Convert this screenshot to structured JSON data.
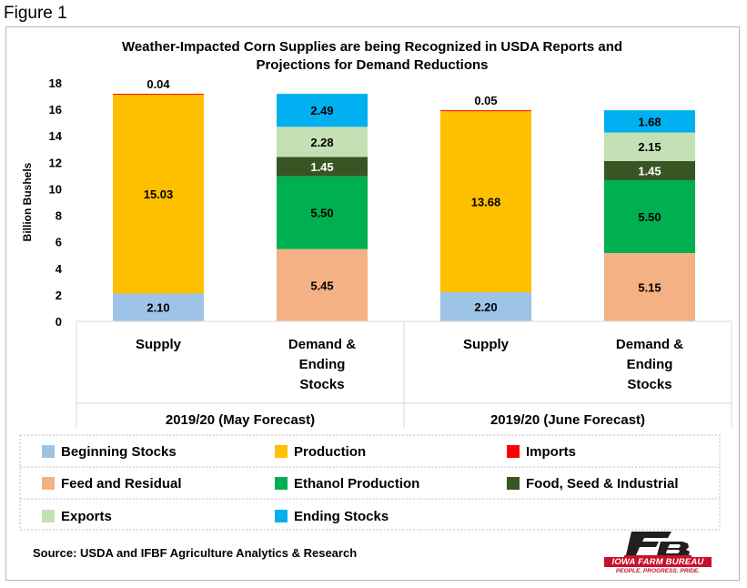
{
  "figure_label": "Figure 1",
  "source": "Source: USDA and IFBF Agriculture Analytics & Research",
  "logo": {
    "name": "IOWA FARM BUREAU",
    "tagline": "PEOPLE. PROGRESS. PRIDE.",
    "colors": {
      "red": "#c8102e",
      "black": "#231f20"
    }
  },
  "chart_data": {
    "type": "bar",
    "stacked": true,
    "title": "Weather-Impacted Corn Supplies are being Recognized in USDA Reports and Projections for Demand Reductions",
    "title_lines": [
      "Weather-Impacted Corn Supplies are being Recognized in USDA Reports and",
      "Projections for Demand Reductions"
    ],
    "ylabel": "Billion Bushels",
    "ylim": [
      0,
      18
    ],
    "yticks": [
      0,
      2,
      4,
      6,
      8,
      10,
      12,
      14,
      16,
      18
    ],
    "grid": false,
    "legend_position": "bottom",
    "groups": [
      {
        "label": "2019/20 (May Forecast)",
        "categories": [
          "Supply",
          "Demand & Ending Stocks"
        ]
      },
      {
        "label": "2019/20 (June Forecast)",
        "categories": [
          "Supply",
          "Demand & Ending Stocks"
        ]
      }
    ],
    "categories": [
      "Supply",
      "Demand & Ending Stocks",
      "Supply",
      "Demand & Ending Stocks"
    ],
    "category_lines": [
      [
        "Supply"
      ],
      [
        "Demand &",
        "Ending",
        "Stocks"
      ],
      [
        "Supply"
      ],
      [
        "Demand &",
        "Ending",
        "Stocks"
      ]
    ],
    "series": [
      {
        "name": "Beginning Stocks",
        "color": "#9dc3e6",
        "values": [
          2.1,
          null,
          2.2,
          null
        ]
      },
      {
        "name": "Production",
        "color": "#ffc000",
        "values": [
          15.03,
          null,
          13.68,
          null
        ]
      },
      {
        "name": "Imports",
        "color": "#ff0000",
        "values": [
          0.04,
          null,
          0.05,
          null
        ]
      },
      {
        "name": "Feed and Residual",
        "color": "#f4b183",
        "values": [
          null,
          5.45,
          null,
          5.15
        ]
      },
      {
        "name": "Ethanol Production",
        "color": "#00b050",
        "values": [
          null,
          5.5,
          null,
          5.5
        ]
      },
      {
        "name": "Food, Seed & Industrial",
        "color": "#375623",
        "values": [
          null,
          1.45,
          null,
          1.45
        ]
      },
      {
        "name": "Exports",
        "color": "#c5e0b4",
        "values": [
          null,
          2.28,
          null,
          2.15
        ]
      },
      {
        "name": "Ending Stocks",
        "color": "#00b0f0",
        "values": [
          null,
          2.49,
          null,
          1.68
        ]
      }
    ],
    "legend_order": [
      "Beginning Stocks",
      "Production",
      "Imports",
      "Feed and Residual",
      "Ethanol Production",
      "Food, Seed & Industrial",
      "Exports",
      "Ending Stocks"
    ]
  }
}
